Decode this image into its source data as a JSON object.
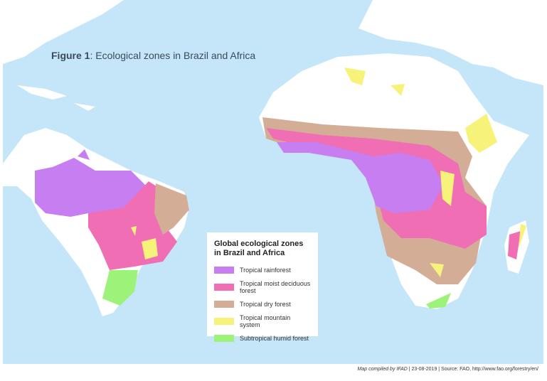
{
  "title": {
    "bold": "Figure 1",
    "rest": ": Ecological zones in Brazil and Africa"
  },
  "legend": {
    "heading": "Global ecological zones in Brazil and Africa",
    "items": [
      {
        "label": "Tropical rainforest",
        "color": "#c77ef0"
      },
      {
        "label": "Tropical moist deciduous forest",
        "color": "#f06fb4"
      },
      {
        "label": "Tropical dry forest",
        "color": "#d4ad97"
      },
      {
        "label": "Tropical mountain system",
        "color": "#f6f27a"
      },
      {
        "label": "Subtropical humid forest",
        "color": "#9df27a"
      }
    ]
  },
  "footer": {
    "compiled": "Map compiled by IFAD",
    "rest": " | 23-08-2019 | Source: FAO, http://www.fao.org/forestry/en/"
  },
  "colors": {
    "ocean": "#c5e6f8",
    "land": "#ffffff"
  }
}
